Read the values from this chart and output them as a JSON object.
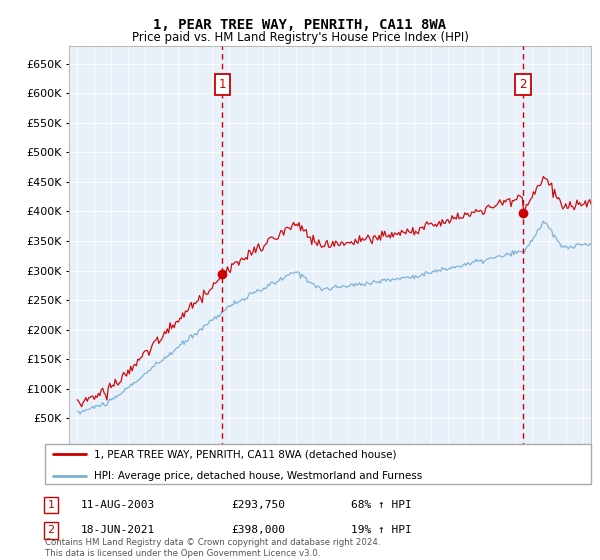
{
  "title": "1, PEAR TREE WAY, PENRITH, CA11 8WA",
  "subtitle": "Price paid vs. HM Land Registry's House Price Index (HPI)",
  "legend_line1": "1, PEAR TREE WAY, PENRITH, CA11 8WA (detached house)",
  "legend_line2": "HPI: Average price, detached house, Westmorland and Furness",
  "footer": "Contains HM Land Registry data © Crown copyright and database right 2024.\nThis data is licensed under the Open Government Licence v3.0.",
  "table": [
    {
      "num": "1",
      "date": "11-AUG-2003",
      "price": "£293,750",
      "hpi": "68% ↑ HPI"
    },
    {
      "num": "2",
      "date": "18-JUN-2021",
      "price": "£398,000",
      "hpi": "19% ↑ HPI"
    }
  ],
  "sale1_date_num": 2003.61,
  "sale1_price": 293750,
  "sale2_date_num": 2021.46,
  "sale2_price": 398000,
  "ylim": [
    0,
    680000
  ],
  "yticks": [
    0,
    50000,
    100000,
    150000,
    200000,
    250000,
    300000,
    350000,
    400000,
    450000,
    500000,
    550000,
    600000,
    650000
  ],
  "xlim_start": 1994.5,
  "xlim_end": 2025.5,
  "plot_bg": "#e8f0fa",
  "red_line_color": "#cc0000",
  "blue_line_color": "#7ab0d4",
  "dashed_color": "#cc0000"
}
